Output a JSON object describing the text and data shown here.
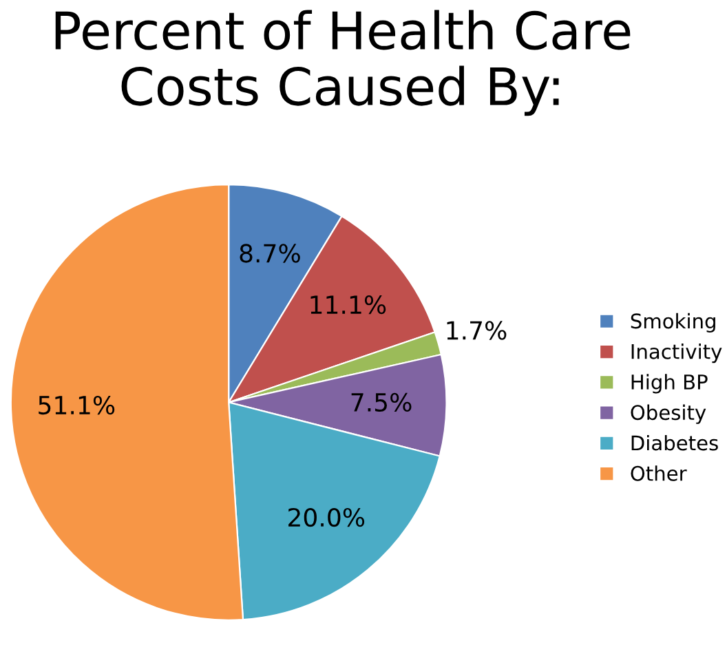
{
  "chart_data": {
    "type": "pie",
    "title": "Percent of Health Care\nCosts Caused By:",
    "categories": [
      "Smoking",
      "Inactivity",
      "High BP",
      "Obesity",
      "Diabetes",
      "Other"
    ],
    "values": [
      8.7,
      11.1,
      1.7,
      7.5,
      20.0,
      51.1
    ],
    "colors": [
      "#4f81bd",
      "#c0504d",
      "#9bbb59",
      "#8064a2",
      "#4bacc6",
      "#f79646"
    ],
    "value_labels": [
      "8.7%",
      "11.1%",
      "1.7%",
      "7.5%",
      "20.0%",
      "51.1%"
    ],
    "legend": "right"
  }
}
